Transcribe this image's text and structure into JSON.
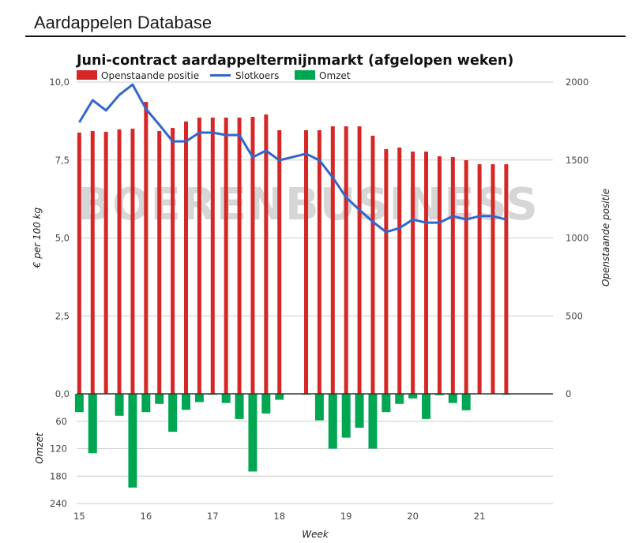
{
  "page": {
    "header_title": "Aardappelen Database"
  },
  "chart_data": {
    "type": "bar",
    "title": "Juni-contract aardappeltermijnmarkt (afgelopen weken)",
    "watermark": "BOERENBUSINESS",
    "xlabel": "Week",
    "x_ticks": [
      "15",
      "16",
      "17",
      "18",
      "19",
      "20",
      "21"
    ],
    "legend": {
      "placement": "top-left",
      "entries": [
        {
          "name": "Openstaande positie",
          "kind": "bar",
          "color": "#d62728"
        },
        {
          "name": "Slotkoers",
          "kind": "line",
          "color": "#3366cc"
        },
        {
          "name": "Omzet",
          "kind": "bar",
          "color": "#00a651"
        }
      ]
    },
    "axes": {
      "left": {
        "label": "€ per 100 kg",
        "ylim": [
          0,
          10
        ],
        "ticks": [
          "0,0",
          "2,5",
          "5,0",
          "7,5",
          "10,0"
        ],
        "tick_values": [
          0,
          2.5,
          5,
          7.5,
          10
        ]
      },
      "right": {
        "label": "Openstaande positie",
        "ylim": [
          0,
          2000
        ],
        "ticks": [
          "0",
          "500",
          "1000",
          "1500",
          "2000"
        ],
        "tick_values": [
          0,
          500,
          1000,
          1500,
          2000
        ]
      },
      "lower": {
        "label": "Omzet",
        "ylim": [
          0,
          240
        ],
        "ticks": [
          "0,0",
          "60",
          "120",
          "180",
          "240"
        ],
        "tick_values": [
          0,
          60,
          120,
          180,
          240
        ]
      }
    },
    "x_range_days": [
      -0.2,
      35.5
    ],
    "week_start_day": {
      "15": 0,
      "16": 5,
      "17": 10,
      "18": 15,
      "19": 20,
      "20": 25,
      "21": 30
    },
    "days": [
      0,
      1,
      2,
      3,
      4,
      5,
      6,
      7,
      8,
      9,
      10,
      11,
      12,
      13,
      14,
      15,
      17,
      18,
      19,
      20,
      21,
      22,
      23,
      24,
      25,
      26,
      27,
      28,
      29,
      30,
      31,
      32
    ],
    "series": [
      {
        "name": "Openstaande positie",
        "axis": "right",
        "type": "bar",
        "values": [
          1676,
          1686,
          1681,
          1696,
          1701,
          1873,
          1686,
          1706,
          1747,
          1772,
          1772,
          1772,
          1772,
          1777,
          1792,
          1691,
          1691,
          1691,
          1716,
          1716,
          1716,
          1656,
          1570,
          1580,
          1554,
          1554,
          1524,
          1519,
          1499,
          1473,
          1473,
          1473
        ]
      },
      {
        "name": "Slotkoers",
        "axis": "left",
        "type": "line",
        "values": [
          8.71,
          9.42,
          9.09,
          9.59,
          9.92,
          9.14,
          8.63,
          8.1,
          8.1,
          8.38,
          8.38,
          8.3,
          8.3,
          7.59,
          7.8,
          7.49,
          7.7,
          7.49,
          6.94,
          6.3,
          5.9,
          5.52,
          5.19,
          5.32,
          5.59,
          5.49,
          5.49,
          5.7,
          5.59,
          5.7,
          5.7,
          5.59
        ]
      },
      {
        "name": "Omzet",
        "axis": "lower",
        "type": "bar",
        "values": [
          40,
          130,
          0,
          48,
          205,
          40,
          22,
          83,
          35,
          18,
          2,
          20,
          55,
          170,
          43,
          13,
          2,
          58,
          120,
          96,
          74,
          120,
          40,
          22,
          10,
          55,
          3,
          20,
          36,
          0,
          0,
          2
        ]
      }
    ],
    "grid": true
  }
}
